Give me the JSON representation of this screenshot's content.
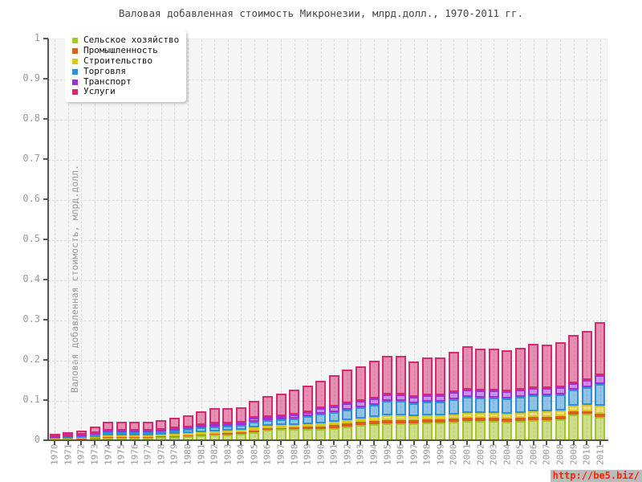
{
  "title": "Валовая добавленная стоимость Микронезии, млрд.долл., 1970-2011 гг.",
  "watermark": {
    "text": "http://be5.biz/",
    "color": "#ff2200",
    "background": "#bbbbbb"
  },
  "axes": {
    "ylabel": "Валовая добавленная стоимость, млрд.долл.",
    "ytick_labels": [
      "0",
      "0.1",
      "0.2",
      "0.3",
      "0.4",
      "0.5",
      "0.6",
      "0.7",
      "0.8",
      "0.9",
      "1"
    ]
  },
  "chart_data": {
    "type": "bar",
    "stacked": true,
    "title": "Валовая добавленная стоимость Микронезии, млрд.долл., 1970-2011 гг.",
    "xlabel": "",
    "ylabel": "Валовая добавленная стоимость, млрд.долл.",
    "ylim": [
      0,
      1
    ],
    "yticks": [
      0,
      0.1,
      0.2,
      0.3,
      0.4,
      0.5,
      0.6,
      0.7,
      0.8,
      0.9,
      1
    ],
    "grid": true,
    "legend_position": "top-left",
    "categories": [
      "1970",
      "1971",
      "1972",
      "1973",
      "1974",
      "1975",
      "1976",
      "1977",
      "1978",
      "1979",
      "1980",
      "1981",
      "1982",
      "1983",
      "1984",
      "1985",
      "1986",
      "1987",
      "1988",
      "1989",
      "1990",
      "1991",
      "1992",
      "1993",
      "1994",
      "1995",
      "1996",
      "1997",
      "1998",
      "1999",
      "2000",
      "2001",
      "2002",
      "2003",
      "2004",
      "2005",
      "2006",
      "2007",
      "2008",
      "2009",
      "2010",
      "2011"
    ],
    "series": [
      {
        "key": "agriculture",
        "name": "Сельское хозяйство",
        "color": "#a6c626",
        "values": [
          0.004,
          0.004,
          0.005,
          0.007,
          0.009,
          0.009,
          0.009,
          0.009,
          0.01,
          0.011,
          0.012,
          0.014,
          0.016,
          0.017,
          0.018,
          0.022,
          0.028,
          0.03,
          0.031,
          0.031,
          0.03,
          0.033,
          0.037,
          0.04,
          0.042,
          0.045,
          0.045,
          0.044,
          0.046,
          0.046,
          0.048,
          0.051,
          0.05,
          0.05,
          0.049,
          0.051,
          0.053,
          0.053,
          0.055,
          0.067,
          0.068,
          0.06
        ]
      },
      {
        "key": "industry",
        "name": "Промышленность",
        "color": "#d9601a",
        "values": [
          0.001,
          0.001,
          0.001,
          0.001,
          0.002,
          0.002,
          0.002,
          0.002,
          0.002,
          0.002,
          0.003,
          0.003,
          0.003,
          0.003,
          0.004,
          0.005,
          0.005,
          0.003,
          0.004,
          0.005,
          0.007,
          0.007,
          0.008,
          0.008,
          0.008,
          0.008,
          0.008,
          0.008,
          0.008,
          0.008,
          0.008,
          0.008,
          0.008,
          0.008,
          0.008,
          0.008,
          0.008,
          0.008,
          0.008,
          0.007,
          0.007,
          0.009
        ]
      },
      {
        "key": "construction",
        "name": "Строительство",
        "color": "#d6c81f",
        "values": [
          0.001,
          0.002,
          0.002,
          0.003,
          0.004,
          0.004,
          0.004,
          0.004,
          0.004,
          0.005,
          0.005,
          0.006,
          0.006,
          0.006,
          0.006,
          0.008,
          0.005,
          0.007,
          0.005,
          0.006,
          0.007,
          0.008,
          0.008,
          0.009,
          0.01,
          0.012,
          0.012,
          0.01,
          0.01,
          0.01,
          0.011,
          0.012,
          0.012,
          0.012,
          0.012,
          0.012,
          0.013,
          0.013,
          0.013,
          0.015,
          0.016,
          0.019
        ]
      },
      {
        "key": "trade",
        "name": "Торговля",
        "color": "#2f8fd6",
        "values": [
          0.003,
          0.003,
          0.004,
          0.005,
          0.007,
          0.007,
          0.007,
          0.007,
          0.008,
          0.009,
          0.01,
          0.011,
          0.012,
          0.012,
          0.012,
          0.014,
          0.015,
          0.015,
          0.017,
          0.02,
          0.025,
          0.025,
          0.026,
          0.028,
          0.031,
          0.036,
          0.036,
          0.033,
          0.035,
          0.035,
          0.038,
          0.04,
          0.039,
          0.039,
          0.038,
          0.039,
          0.04,
          0.04,
          0.041,
          0.04,
          0.044,
          0.055
        ]
      },
      {
        "key": "transport",
        "name": "Транспорт",
        "color": "#a02fd6",
        "values": [
          0.002,
          0.002,
          0.002,
          0.003,
          0.004,
          0.004,
          0.004,
          0.004,
          0.004,
          0.005,
          0.005,
          0.006,
          0.007,
          0.007,
          0.007,
          0.009,
          0.008,
          0.008,
          0.009,
          0.01,
          0.013,
          0.014,
          0.015,
          0.015,
          0.016,
          0.016,
          0.016,
          0.016,
          0.016,
          0.016,
          0.017,
          0.018,
          0.018,
          0.018,
          0.017,
          0.018,
          0.018,
          0.018,
          0.018,
          0.015,
          0.017,
          0.022
        ]
      },
      {
        "key": "services",
        "name": "Услуги",
        "color": "#d62a70",
        "values": [
          0.008,
          0.01,
          0.013,
          0.017,
          0.023,
          0.023,
          0.023,
          0.022,
          0.025,
          0.027,
          0.029,
          0.034,
          0.038,
          0.038,
          0.037,
          0.042,
          0.052,
          0.056,
          0.063,
          0.067,
          0.069,
          0.078,
          0.084,
          0.087,
          0.094,
          0.096,
          0.096,
          0.088,
          0.094,
          0.093,
          0.101,
          0.107,
          0.104,
          0.104,
          0.102,
          0.105,
          0.111,
          0.109,
          0.112,
          0.12,
          0.122,
          0.131
        ]
      }
    ]
  }
}
